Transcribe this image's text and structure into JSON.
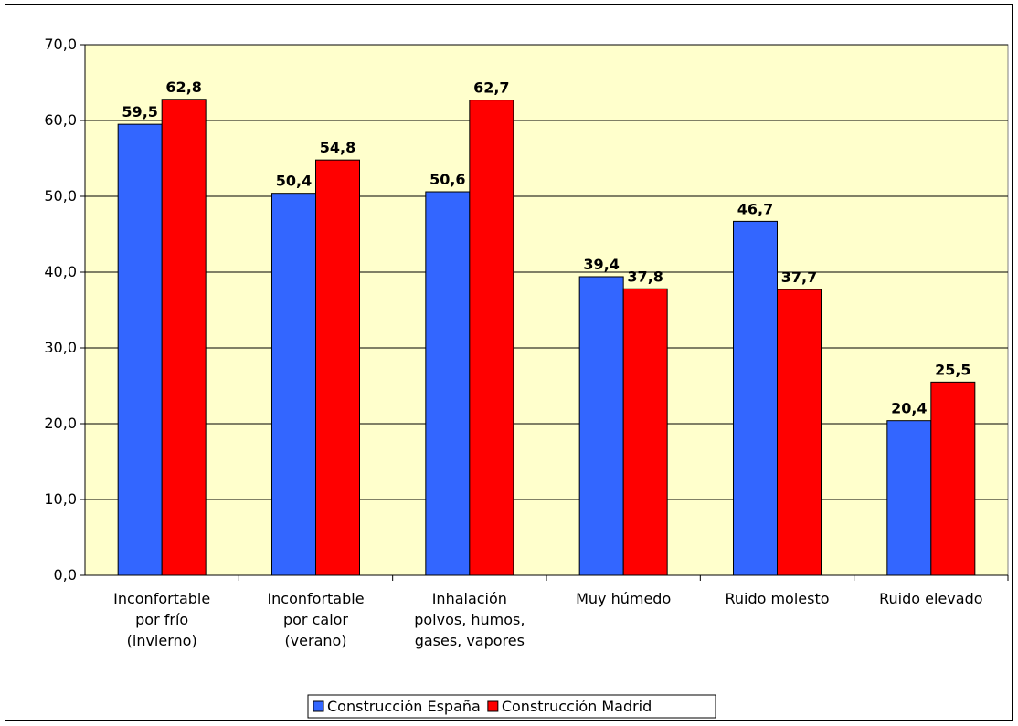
{
  "chart_data": {
    "type": "bar",
    "categories": [
      [
        "Inconfortable",
        "por frío",
        "(invierno)"
      ],
      [
        "Inconfortable",
        "por calor",
        "(verano)"
      ],
      [
        "Inhalación",
        "polvos, humos,",
        "gases, vapores"
      ],
      [
        "Muy húmedo"
      ],
      [
        "Ruido molesto"
      ],
      [
        "Ruido elevado"
      ]
    ],
    "series": [
      {
        "name": "Construcción España",
        "color": "#3366ff",
        "values": [
          59.5,
          50.4,
          50.6,
          39.4,
          46.7,
          20.4
        ],
        "labels": [
          "59,5",
          "50,4",
          "50,6",
          "39,4",
          "46,7",
          "20,4"
        ]
      },
      {
        "name": "Construcción Madrid",
        "color": "#ff0000",
        "values": [
          62.8,
          54.8,
          62.7,
          37.8,
          37.7,
          25.5
        ],
        "labels": [
          "62,8",
          "54,8",
          "62,7",
          "37,8",
          "37,7",
          "25,5"
        ]
      }
    ],
    "ylim": [
      0,
      70
    ],
    "yticks": [
      "0,0",
      "10,0",
      "20,0",
      "30,0",
      "40,0",
      "50,0",
      "60,0",
      "70,0"
    ],
    "plot_background": "#ffffcc",
    "grid": true,
    "legend_position": "bottom"
  }
}
